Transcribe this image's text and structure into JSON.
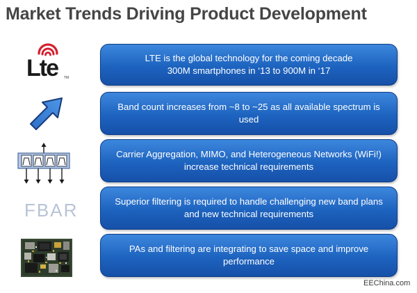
{
  "title": "Market Trends Driving Product Development",
  "rows": [
    {
      "icon": "lte-logo-icon",
      "lines": [
        "LTE is the global technology for the coming decade",
        "300M smartphones in ‘13 to 900M in ‘17"
      ]
    },
    {
      "icon": "up-right-arrow-icon",
      "lines": [
        "Band count increases from ~8 to ~25 as all available spectrum is",
        "used"
      ]
    },
    {
      "icon": "filter-bank-icon",
      "lines": [
        "Carrier Aggregation, MIMO, and Heterogeneous Networks (WiFi!)",
        "increase technical requirements"
      ]
    },
    {
      "icon": "fbar-label",
      "lines": [
        "Superior filtering is required to handle challenging new band plans",
        "and new technical requirements"
      ]
    },
    {
      "icon": "circuit-board-icon",
      "lines": [
        "PAs and filtering are integrating to save space and improve",
        "performance"
      ]
    }
  ],
  "lte_logo_text": "Lte",
  "lte_logo_tm": "TM",
  "fbar_text": "FBAR",
  "watermark": "EEChina.com",
  "colors": {
    "bar_fill": "#1d63bf",
    "bar_border": "#0f3d88",
    "title_text": "#454545",
    "lte_red": "#d4202f",
    "fbar_text": "#b7c3d6"
  }
}
